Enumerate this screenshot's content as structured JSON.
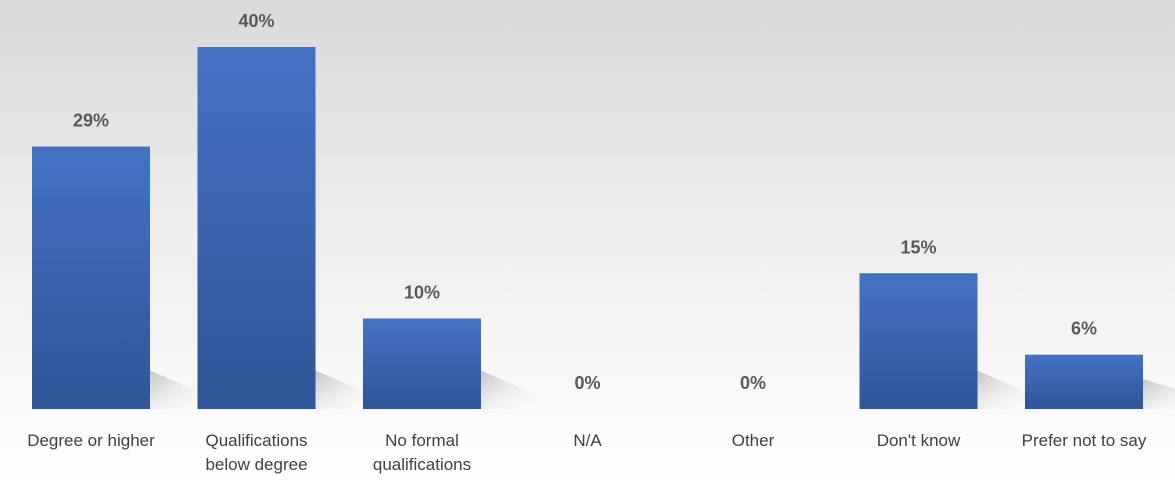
{
  "chart_data": {
    "type": "bar",
    "categories": [
      [
        "Degree or higher"
      ],
      [
        "Qualifications",
        "below degree"
      ],
      [
        "No formal",
        "qualifications"
      ],
      [
        "N/A"
      ],
      [
        "Other"
      ],
      [
        "Don't know"
      ],
      [
        "Prefer not to say"
      ]
    ],
    "values": [
      29,
      40,
      10,
      0,
      0,
      15,
      6
    ],
    "value_labels": [
      "29%",
      "40%",
      "10%",
      "0%",
      "0%",
      "15%",
      "6%"
    ],
    "ylim": [
      0,
      40
    ],
    "grid": false,
    "legend": "none",
    "colors": {
      "bar_top": "#4472c4",
      "bar_bottom": "#2f5597",
      "label": "#595959"
    }
  }
}
